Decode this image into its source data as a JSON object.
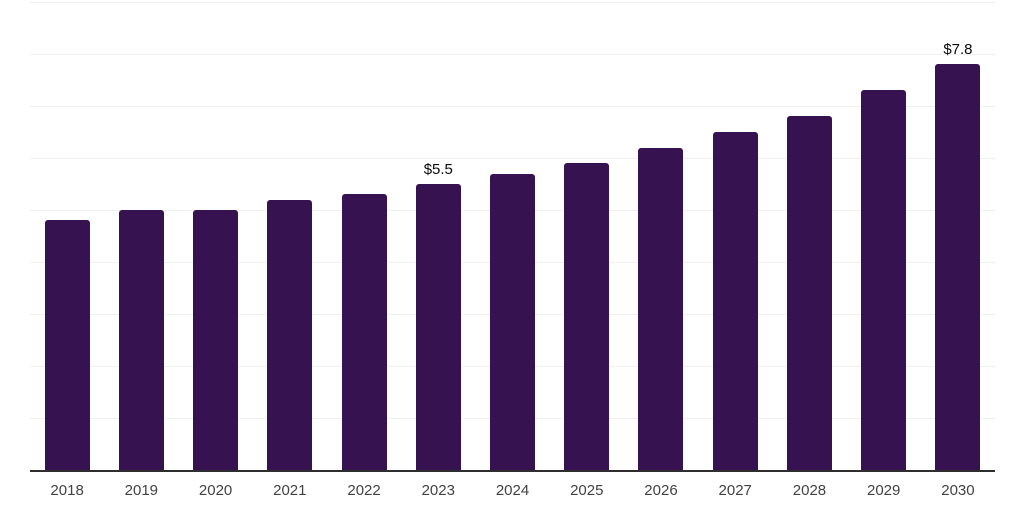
{
  "chart_data": {
    "type": "bar",
    "title": "",
    "xlabel": "",
    "ylabel": "",
    "categories": [
      "2018",
      "2019",
      "2020",
      "2021",
      "2022",
      "2023",
      "2024",
      "2025",
      "2026",
      "2027",
      "2028",
      "2029",
      "2030"
    ],
    "values": [
      4.8,
      5.0,
      5.0,
      5.2,
      5.3,
      5.5,
      5.7,
      5.9,
      6.2,
      6.5,
      6.8,
      7.3,
      7.8
    ],
    "point_labels": [
      "",
      "",
      "",
      "",
      "",
      "$5.5",
      "",
      "",
      "",
      "",
      "",
      "",
      "$7.8"
    ],
    "value_unit": "$ billions",
    "ylim": [
      0,
      9
    ],
    "gridline_step": 1,
    "grid": "horizontal",
    "legend": "none",
    "y_axis_tick_labels_visible": false,
    "colors": {
      "bar": "#361350",
      "gridline": "#f0f0f2",
      "axis_line": "#2e2e2e",
      "tick_label": "#424242",
      "data_label": "#0a0a0a",
      "background": "#ffffff"
    }
  }
}
